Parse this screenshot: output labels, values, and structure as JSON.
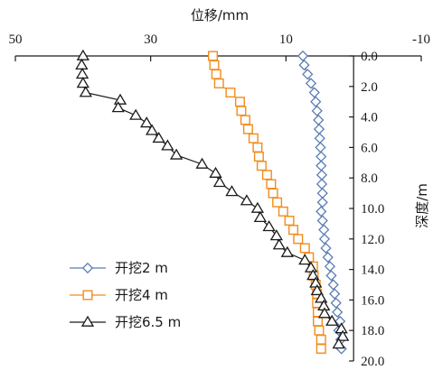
{
  "chart_data": {
    "type": "line",
    "title": "",
    "xlabel": "位移/mm",
    "ylabel": "深度/m",
    "x_axis_position": "top",
    "x_reversed": true,
    "y_reversed": true,
    "xlim": [
      50,
      -10
    ],
    "ylim": [
      0,
      20
    ],
    "xticks": [
      50,
      30,
      10,
      -10
    ],
    "yticks": [
      0,
      2,
      4,
      6,
      8,
      10,
      12,
      14,
      16,
      18,
      20
    ],
    "ytick_labels": [
      "0.0",
      "2.0",
      "4.0",
      "6.0",
      "8.0",
      "10.0",
      "12.0",
      "14.0",
      "16.0",
      "18.0",
      "20.0"
    ],
    "legend_position": "bottom-left",
    "series": [
      {
        "name": "开挖2 m",
        "marker": "diamond",
        "color": "#5b7db5",
        "depth": [
          0.0,
          0.6,
          1.2,
          1.8,
          2.4,
          3.0,
          3.6,
          4.2,
          4.8,
          5.4,
          6.0,
          6.6,
          7.2,
          7.8,
          8.4,
          9.0,
          9.6,
          10.2,
          10.8,
          11.4,
          12.0,
          12.6,
          13.2,
          13.8,
          14.4,
          15.0,
          15.6,
          16.2,
          16.8,
          17.4,
          18.0,
          18.6,
          19.2
        ],
        "displacement": [
          7.5,
          7.3,
          6.8,
          6.3,
          5.8,
          5.6,
          5.4,
          5.2,
          5.1,
          5.0,
          4.9,
          4.8,
          4.8,
          4.7,
          4.7,
          4.6,
          4.6,
          4.8,
          4.6,
          4.4,
          4.3,
          4.1,
          3.8,
          3.5,
          3.3,
          3.0,
          2.8,
          2.6,
          2.4,
          2.0,
          2.2,
          1.9,
          1.8
        ]
      },
      {
        "name": "开挖4 m",
        "marker": "square",
        "color": "#f28c1e",
        "depth": [
          0.0,
          0.6,
          1.2,
          1.8,
          2.4,
          3.0,
          3.6,
          4.2,
          4.8,
          5.4,
          6.0,
          6.6,
          7.2,
          7.8,
          8.4,
          9.0,
          9.6,
          10.2,
          10.8,
          11.4,
          12.0,
          12.6,
          13.2,
          13.8,
          14.4,
          15.0,
          15.6,
          16.2,
          16.8,
          17.4,
          18.0,
          18.6,
          19.2
        ],
        "displacement": [
          20.8,
          20.6,
          20.3,
          19.9,
          18.2,
          16.8,
          16.6,
          16.0,
          15.6,
          14.8,
          14.2,
          14.0,
          13.6,
          12.8,
          12.2,
          11.9,
          11.3,
          10.4,
          9.5,
          8.9,
          8.2,
          7.2,
          6.6,
          6.0,
          5.9,
          5.6,
          5.4,
          5.4,
          5.3,
          5.3,
          5.1,
          4.8,
          4.8
        ]
      },
      {
        "name": "开挖6.5 m",
        "marker": "triangle",
        "color": "#1a1a1a",
        "depth": [
          0.0,
          0.6,
          1.2,
          1.8,
          2.4,
          2.9,
          3.4,
          3.9,
          4.4,
          4.9,
          5.4,
          5.9,
          6.5,
          7.1,
          7.7,
          8.3,
          8.9,
          9.5,
          10.0,
          10.6,
          11.2,
          11.8,
          12.4,
          12.9,
          13.4,
          13.9,
          14.4,
          14.9,
          15.4,
          15.9,
          16.4,
          16.9,
          17.4,
          17.9,
          18.4,
          18.9
        ],
        "displacement": [
          40.0,
          40.2,
          40.1,
          40.0,
          39.6,
          34.5,
          34.8,
          32.2,
          30.6,
          29.8,
          28.8,
          27.5,
          26.2,
          22.4,
          20.4,
          19.8,
          18.0,
          15.8,
          14.2,
          13.8,
          12.5,
          11.4,
          11.0,
          9.8,
          7.2,
          6.3,
          6.0,
          5.6,
          5.4,
          4.8,
          4.4,
          4.3,
          3.2,
          1.8,
          1.6,
          2.2
        ]
      }
    ]
  }
}
